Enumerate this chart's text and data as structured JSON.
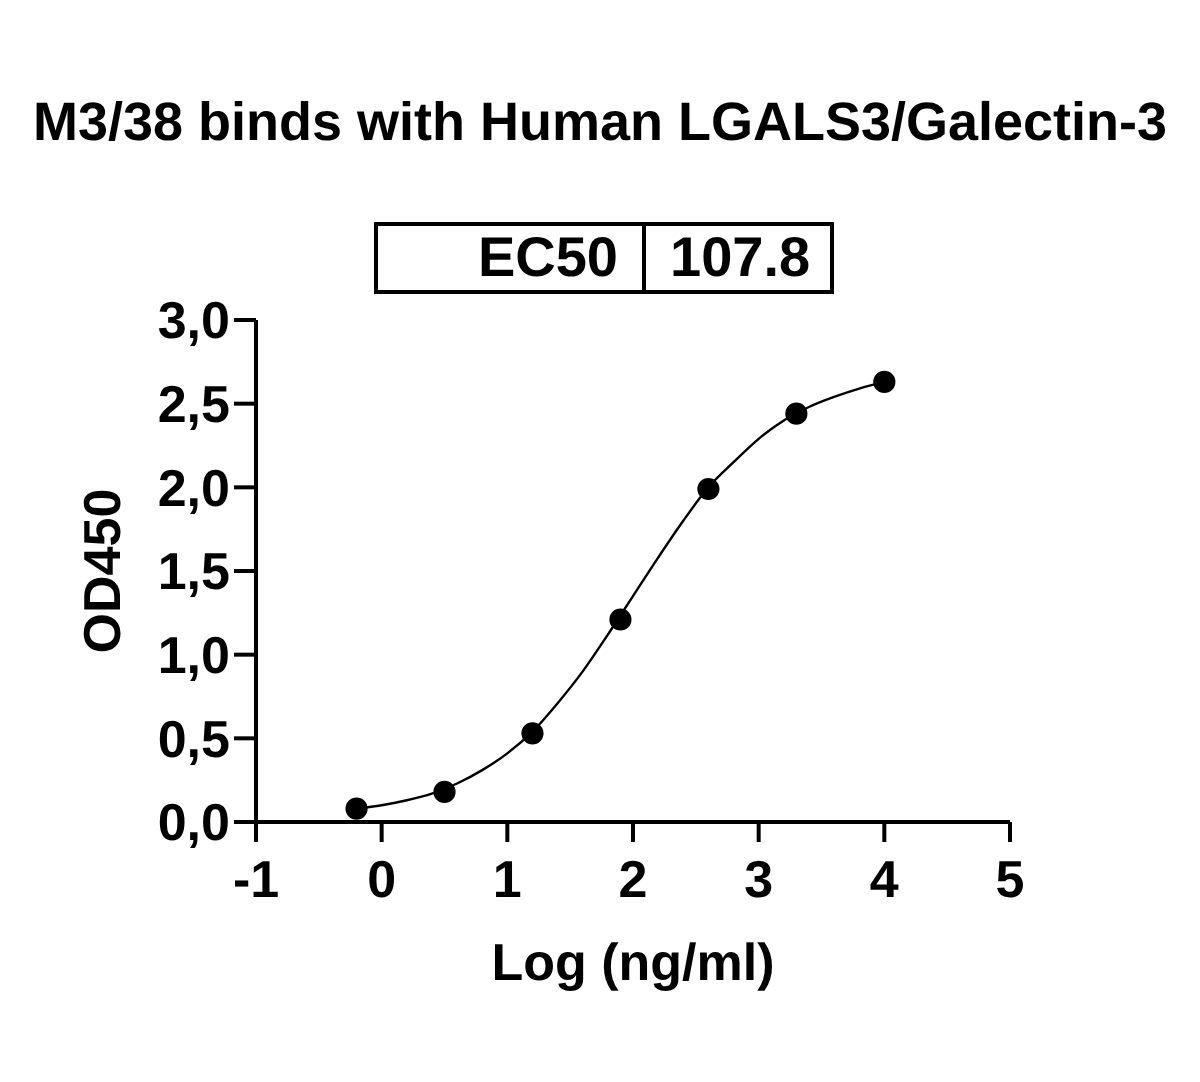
{
  "chart_data": {
    "type": "scatter",
    "title": "M3/38 binds with Human LGALS3/Galectin-3",
    "xlabel": "Log (ng/ml)",
    "ylabel": "OD450",
    "annotations": [
      "EC50",
      "107.8"
    ],
    "xlim": [
      -1,
      5
    ],
    "xticks": [
      -1,
      0,
      1,
      2,
      3,
      4,
      5
    ],
    "ylim": [
      0,
      3
    ],
    "yticks": [
      {
        "value": 0,
        "label": "0,0"
      },
      {
        "value": 0.5,
        "label": "0,5"
      },
      {
        "value": 1,
        "label": "1,0"
      },
      {
        "value": 1.5,
        "label": "1,5"
      },
      {
        "value": 2,
        "label": "2,0"
      },
      {
        "value": 2.5,
        "label": "2,5"
      },
      {
        "value": 3,
        "label": "3,0"
      }
    ],
    "series": [
      {
        "color": "#000000",
        "marker": "circle",
        "x": [
          -0.2,
          0.5,
          1.2,
          1.9,
          2.6,
          3.3,
          4.0
        ],
        "values": [
          0.08,
          0.18,
          0.53,
          1.21,
          1.99,
          2.44,
          2.63
        ]
      },
      {
        "type": "line",
        "color": "#000000",
        "marker": "none",
        "line_style": "solid",
        "x": [
          -0.2,
          0.0,
          0.2,
          0.4,
          0.6,
          0.8,
          1.0,
          1.2,
          1.4,
          1.6,
          1.8,
          2.0,
          2.2,
          2.4,
          2.6,
          2.8,
          3.0,
          3.2,
          3.4,
          3.6,
          3.8,
          4.0
        ],
        "values": [
          0.08,
          0.1,
          0.13,
          0.17,
          0.23,
          0.31,
          0.41,
          0.54,
          0.71,
          0.9,
          1.12,
          1.35,
          1.58,
          1.8,
          2.0,
          2.15,
          2.29,
          2.4,
          2.48,
          2.54,
          2.59,
          2.63
        ]
      }
    ]
  }
}
